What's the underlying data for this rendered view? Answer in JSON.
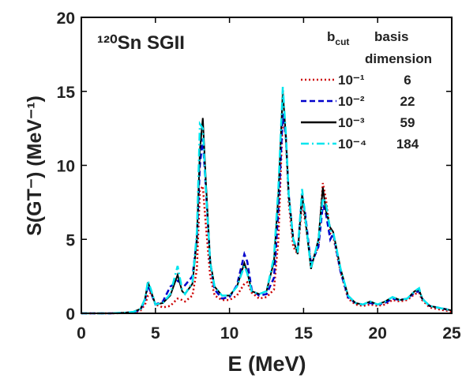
{
  "chart_data": {
    "type": "line",
    "title": "¹²⁰Sn SGII",
    "x_label": "E (MeV)",
    "y_label": "S(GT⁻) (MeV⁻¹)",
    "legend_header": {
      "b": "b",
      "sub": "cut",
      "basis": "basis",
      "dimension": "dimension"
    },
    "x": [
      0,
      1,
      2,
      3,
      3.5,
      4,
      4.3,
      4.5,
      4.7,
      5,
      5.5,
      6,
      6.5,
      6.8,
      7,
      7.5,
      7.8,
      8,
      8.2,
      8.4,
      8.7,
      9,
      9.5,
      10,
      10.5,
      11,
      11.2,
      11.5,
      12,
      12.5,
      13,
      13.3,
      13.6,
      13.8,
      14,
      14.3,
      14.6,
      14.9,
      15.1,
      15.5,
      16,
      16.3,
      16.5,
      16.8,
      17,
      17.5,
      18,
      18.5,
      19,
      19.5,
      20,
      20.5,
      21,
      21.5,
      22,
      22.5,
      22.8,
      23,
      23.5,
      24,
      25
    ],
    "series": [
      {
        "name": "10⁻¹",
        "dimension": 6,
        "color": "#cc0000",
        "style": "dotted",
        "values": [
          0,
          0,
          0,
          0.02,
          0.05,
          0.2,
          0.6,
          1.2,
          1.4,
          0.6,
          0.4,
          0.5,
          1.0,
          0.9,
          0.8,
          1.2,
          3,
          8.3,
          8.6,
          6,
          2.5,
          1.2,
          0.9,
          0.9,
          1.2,
          2.0,
          2.1,
          1.4,
          1.0,
          1.1,
          1.6,
          5,
          13.5,
          12,
          7.5,
          4.5,
          4,
          7.5,
          6.3,
          3.4,
          4.5,
          8.8,
          7.8,
          5.4,
          5.2,
          2.8,
          1.0,
          0.6,
          0.5,
          0.6,
          0.5,
          0.6,
          0.9,
          0.8,
          0.9,
          1.3,
          1.4,
          0.9,
          0.4,
          0.3,
          0.1
        ]
      },
      {
        "name": "10⁻²",
        "dimension": 22,
        "color": "#0000cc",
        "style": "dashed",
        "values": [
          0,
          0,
          0,
          0.04,
          0.08,
          0.25,
          0.9,
          1.9,
          1.4,
          0.6,
          0.8,
          1.8,
          2.2,
          2.0,
          1.9,
          2.5,
          5,
          10,
          11.8,
          8.5,
          3.4,
          1.6,
          1.0,
          1.1,
          1.9,
          4.0,
          3.5,
          1.6,
          1.2,
          1.3,
          2.4,
          7,
          13.5,
          12,
          8,
          5,
          4.2,
          8,
          6.8,
          3.3,
          4.5,
          7.3,
          6.8,
          5.0,
          5.4,
          2.8,
          1.1,
          0.7,
          0.6,
          0.7,
          0.6,
          0.7,
          1.0,
          0.9,
          1.0,
          1.4,
          1.5,
          1.0,
          0.5,
          0.4,
          0.2
        ]
      },
      {
        "name": "10⁻³",
        "dimension": 59,
        "color": "#000000",
        "style": "solid",
        "values": [
          0,
          0,
          0,
          0.05,
          0.1,
          0.3,
          1.0,
          2.1,
          1.5,
          0.6,
          0.7,
          1.2,
          2.6,
          1.5,
          1.3,
          2.0,
          5,
          11,
          13.2,
          9,
          3.5,
          1.8,
          1.2,
          1.2,
          1.8,
          3.4,
          2.8,
          1.5,
          1.3,
          1.5,
          3.5,
          8,
          15,
          12,
          8,
          5,
          4,
          8,
          6.5,
          3,
          5,
          8.5,
          7,
          5.8,
          5.5,
          3,
          1.2,
          0.7,
          0.6,
          0.8,
          0.6,
          0.8,
          1.1,
          0.9,
          1.0,
          1.5,
          1.6,
          1.0,
          0.5,
          0.4,
          0.2
        ]
      },
      {
        "name": "10⁻⁴",
        "dimension": 184,
        "color": "#00e5ee",
        "style": "dashdot",
        "values": [
          0,
          0,
          0,
          0.05,
          0.1,
          0.3,
          1.0,
          2.2,
          1.6,
          0.6,
          0.7,
          1.3,
          3.2,
          1.6,
          1.3,
          2.1,
          5.5,
          12.8,
          12.5,
          8.5,
          3.4,
          1.8,
          1.2,
          1.2,
          1.8,
          3.2,
          2.7,
          1.5,
          1.3,
          1.5,
          3.8,
          8.5,
          15.3,
          12.2,
          8,
          5,
          4.1,
          8.4,
          6.6,
          3.1,
          4.9,
          7.8,
          7.5,
          5.6,
          5.5,
          3,
          1.2,
          0.7,
          0.6,
          0.8,
          0.6,
          0.8,
          1.1,
          0.9,
          1.0,
          1.5,
          1.7,
          1.0,
          0.5,
          0.4,
          0.2
        ]
      }
    ],
    "xlim": [
      0,
      25
    ],
    "ylim": [
      0,
      20
    ],
    "xticks": [
      0,
      5,
      10,
      15,
      20,
      25
    ],
    "yticks": [
      0,
      5,
      10,
      15,
      20
    ]
  }
}
